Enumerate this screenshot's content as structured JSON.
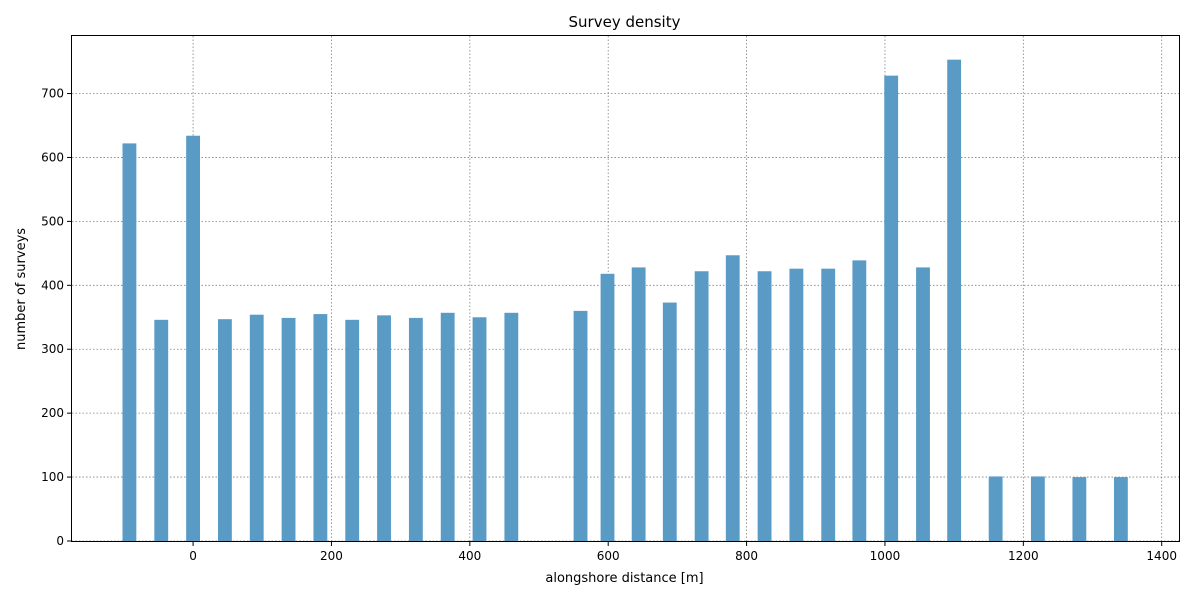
{
  "chart_data": {
    "type": "bar",
    "title": "Survey density",
    "xlabel": "alongshore distance [m]",
    "ylabel": "number of surveys",
    "xlim": [
      -175,
      1425
    ],
    "ylim": [
      0,
      790
    ],
    "xticks": [
      0,
      200,
      400,
      600,
      800,
      1000,
      1200,
      1400
    ],
    "yticks": [
      0,
      100,
      200,
      300,
      400,
      500,
      600,
      700
    ],
    "grid": true,
    "bar_width": 20,
    "bar_color": "#5a9bc6",
    "x": [
      -92,
      -46,
      0,
      46,
      92,
      138,
      184,
      230,
      276,
      322,
      368,
      414,
      460,
      560,
      599,
      644,
      689,
      735,
      780,
      826,
      872,
      918,
      963,
      1009,
      1055,
      1100,
      1160,
      1221,
      1281,
      1341
    ],
    "values": [
      622,
      346,
      634,
      347,
      354,
      349,
      355,
      346,
      353,
      349,
      357,
      350,
      357,
      360,
      418,
      428,
      373,
      422,
      447,
      422,
      426,
      426,
      439,
      728,
      428,
      753,
      101,
      101,
      100,
      100
    ]
  }
}
